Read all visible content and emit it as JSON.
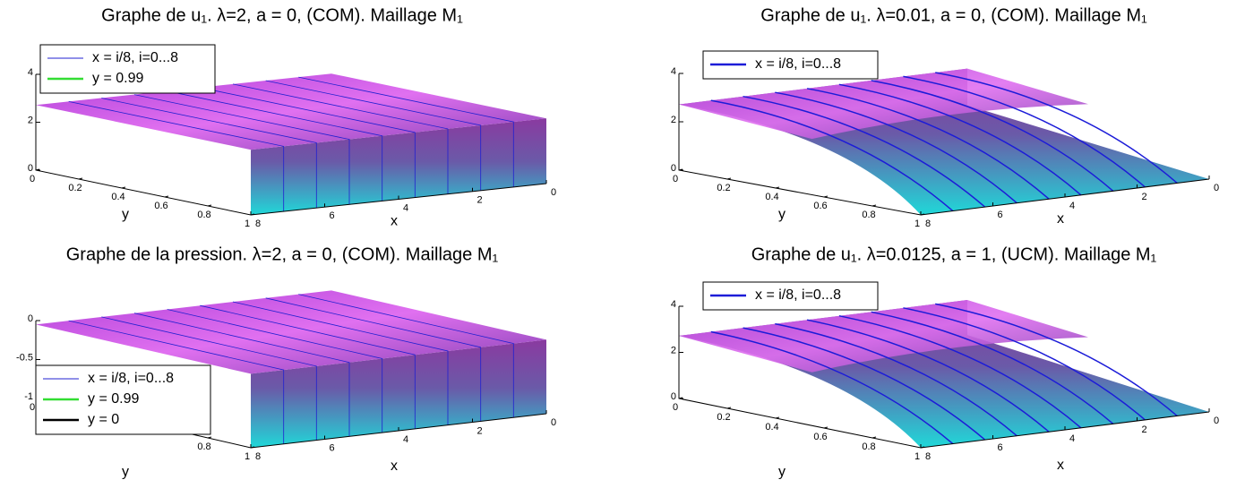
{
  "chart_data": [
    {
      "type": "surface",
      "title": "Graphe de u₁. λ=2, a = 0, (COM). Maillage M₁",
      "xlabel": "x",
      "ylabel": "y",
      "series": [
        {
          "name": "x = i/8, i=0...8",
          "color": "#2020d0"
        },
        {
          "name": "y = 0.99",
          "color": "#33dd33"
        }
      ],
      "xlim": [
        0,
        8
      ],
      "xticks": [
        0,
        2,
        4,
        6,
        8
      ],
      "ylim": [
        0,
        1
      ],
      "yticks": [
        0,
        0.2,
        0.4,
        0.6,
        0.8,
        1
      ],
      "zlim": [
        0,
        4
      ],
      "zticks": [
        0,
        2,
        4
      ]
    },
    {
      "type": "surface",
      "title": "Graphe de u₁. λ=0.01, a = 0, (COM). Maillage M₁",
      "xlabel": "x",
      "ylabel": "y",
      "series": [
        {
          "name": "x = i/8, i=0...8",
          "color": "#1c1cd8"
        }
      ],
      "xlim": [
        0,
        8
      ],
      "xticks": [
        0,
        2,
        4,
        6,
        8
      ],
      "ylim": [
        0,
        1
      ],
      "yticks": [
        0,
        0.2,
        0.4,
        0.6,
        0.8,
        1
      ],
      "zlim": [
        0,
        4
      ],
      "zticks": [
        0,
        2,
        4
      ]
    },
    {
      "type": "surface",
      "title": "Graphe de la pression. λ=2, a = 0, (COM). Maillage M₁",
      "xlabel": "x",
      "ylabel": "y",
      "series": [
        {
          "name": "x = i/8, i=0...8",
          "color": "#2020d0"
        },
        {
          "name": "y = 0.99",
          "color": "#33dd33"
        },
        {
          "name": "y = 0",
          "color": "#000000"
        }
      ],
      "xlim": [
        0,
        8
      ],
      "xticks": [
        0,
        2,
        4,
        6,
        8
      ],
      "ylim": [
        0,
        1
      ],
      "yticks": [
        0,
        0.8,
        1
      ],
      "zlim": [
        -1,
        0
      ],
      "zticks": [
        -1,
        -0.5,
        0
      ]
    },
    {
      "type": "surface",
      "title": "Graphe de u₁. λ=0.0125, a = 1, (UCM). Maillage M₁",
      "xlabel": "x",
      "ylabel": "y",
      "series": [
        {
          "name": "x = i/8, i=0...8",
          "color": "#1c1cd8"
        }
      ],
      "xlim": [
        0,
        8
      ],
      "xticks": [
        0,
        2,
        4,
        6,
        8
      ],
      "ylim": [
        0,
        1
      ],
      "yticks": [
        0,
        0.2,
        0.4,
        0.6,
        0.8,
        1
      ],
      "zlim": [
        0,
        4
      ],
      "zticks": [
        0,
        2,
        4
      ]
    }
  ]
}
